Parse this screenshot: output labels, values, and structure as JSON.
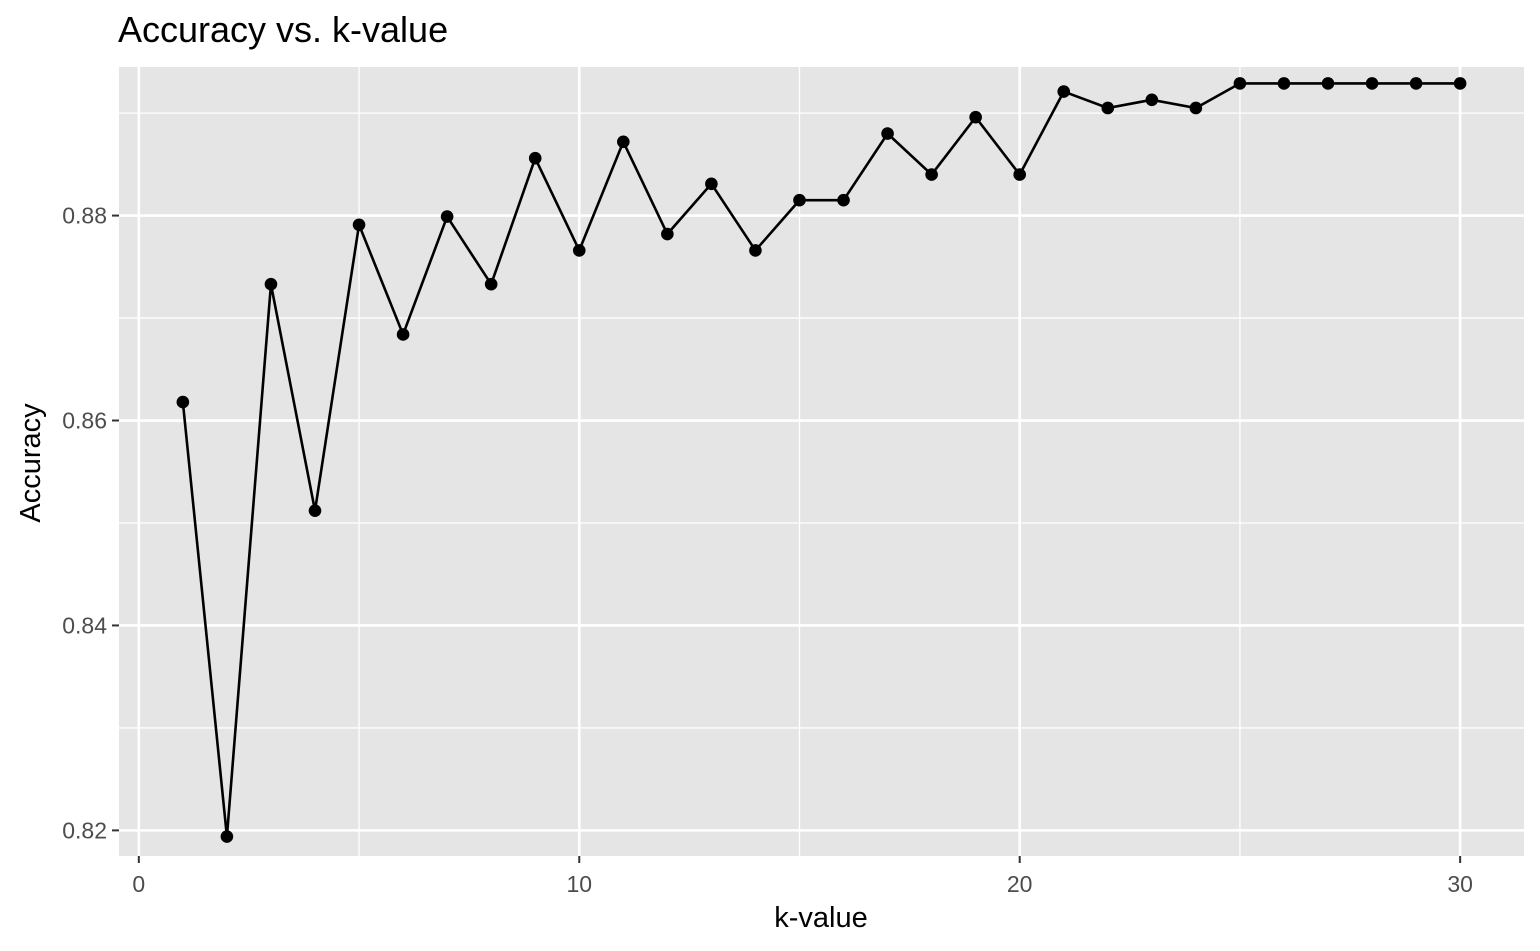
{
  "chart_data": {
    "type": "line",
    "title": "Accuracy vs. k-value",
    "xlabel": "k-value",
    "ylabel": "Accuracy",
    "xlim": [
      -0.45,
      31.45
    ],
    "ylim": [
      0.8175,
      0.8945
    ],
    "x_major_ticks": [
      0,
      10,
      20,
      30
    ],
    "x_major_tick_labels": [
      "0",
      "10",
      "20",
      "30"
    ],
    "x_minor_ticks": [
      5,
      15,
      25
    ],
    "y_major_ticks": [
      0.82,
      0.84,
      0.86,
      0.88
    ],
    "y_major_tick_labels": [
      "0.82",
      "0.84",
      "0.86",
      "0.88"
    ],
    "y_minor_ticks": [
      0.83,
      0.85,
      0.87,
      0.89
    ],
    "grid": true,
    "background": "#e5e5e5",
    "line_color": "#000000",
    "series": [
      {
        "name": "Accuracy",
        "x": [
          1,
          2,
          3,
          4,
          5,
          6,
          7,
          8,
          9,
          10,
          11,
          12,
          13,
          14,
          15,
          16,
          17,
          18,
          19,
          20,
          21,
          22,
          23,
          24,
          25,
          26,
          27,
          28,
          29,
          30
        ],
        "values": [
          0.8618,
          0.8194,
          0.8733,
          0.8512,
          0.8791,
          0.8684,
          0.8799,
          0.8733,
          0.8856,
          0.8766,
          0.8872,
          0.8782,
          0.8831,
          0.8766,
          0.8815,
          0.8815,
          0.888,
          0.884,
          0.8896,
          0.884,
          0.8921,
          0.8905,
          0.8913,
          0.8905,
          0.8929,
          0.8929,
          0.8929,
          0.8929,
          0.8929,
          0.8929
        ]
      }
    ]
  }
}
